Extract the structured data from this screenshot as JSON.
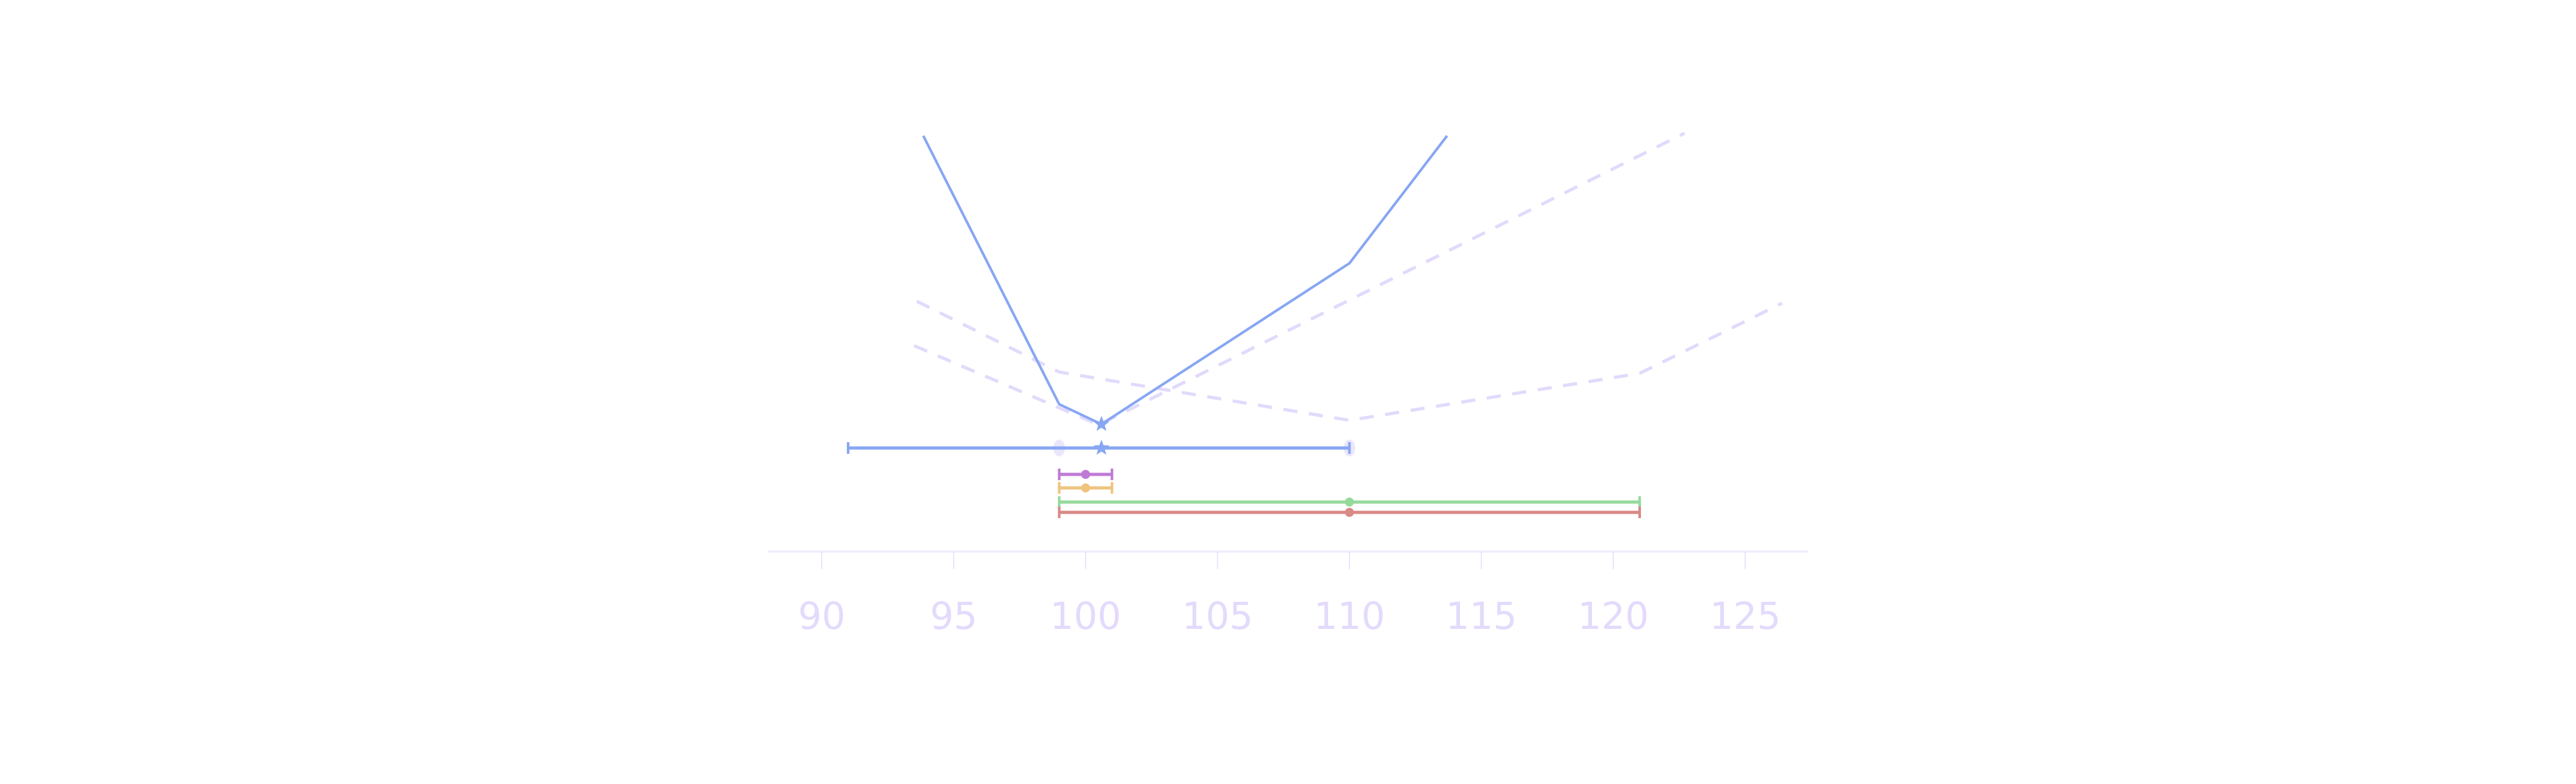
{
  "chart_data": {
    "type": "line",
    "title": "",
    "xlabel": "",
    "ylabel": "",
    "xlim": [
      88.2,
      127.4
    ],
    "x_ticks": [
      90,
      95,
      100,
      105,
      110,
      115,
      120,
      125
    ],
    "x_tick_labels": [
      "90",
      "95",
      "100",
      "105",
      "110",
      "115",
      "120",
      "125"
    ],
    "grid": false,
    "legend": null,
    "y_units_note": "No y-axis shown; y values are relative heights above the top interval row",
    "lines": [
      {
        "name": "profile-solid",
        "style": "solid",
        "color": "#87a6f3",
        "points": [
          {
            "x": 93.85,
            "y": 485
          },
          {
            "x": 99.0,
            "y": 68
          },
          {
            "x": 100.6,
            "y": 37,
            "marker": "star"
          },
          {
            "x": 110.0,
            "y": 287
          },
          {
            "x": 113.7,
            "y": 485
          }
        ]
      },
      {
        "name": "profile-dashed-1",
        "style": "dashed",
        "color": "#e2dafc",
        "points": [
          {
            "x": 93.6,
            "y": 228
          },
          {
            "x": 99.0,
            "y": 118
          },
          {
            "x": 110.0,
            "y": 43
          },
          {
            "x": 121.0,
            "y": 116
          },
          {
            "x": 126.4,
            "y": 225
          }
        ]
      },
      {
        "name": "profile-dashed-2",
        "style": "dashed",
        "color": "#e2dafc",
        "points": [
          {
            "x": 93.5,
            "y": 159
          },
          {
            "x": 100.5,
            "y": 36
          },
          {
            "x": 122.7,
            "y": 489
          }
        ]
      }
    ],
    "intervals": [
      {
        "name": "interval-blue",
        "color": "#87a6f3",
        "low": 91.0,
        "high": 110.0,
        "estimate": 100.6,
        "marker": "star",
        "ghost_markers": [
          99.0,
          110.0
        ],
        "ghost_color": "#ece6fd"
      },
      {
        "name": "interval-purple",
        "color": "#bf7ad6",
        "low": 99.0,
        "high": 101.0,
        "estimate": 100.0,
        "marker": "circle"
      },
      {
        "name": "interval-orange",
        "color": "#eec47e",
        "low": 99.0,
        "high": 101.0,
        "estimate": 100.0,
        "marker": "circle"
      },
      {
        "name": "interval-green",
        "color": "#96da9b",
        "low": 99.0,
        "high": 121.0,
        "estimate": 110.0,
        "marker": "circle"
      },
      {
        "name": "interval-red",
        "color": "#d98986",
        "low": 99.0,
        "high": 121.0,
        "estimate": 110.0,
        "marker": "circle"
      }
    ]
  },
  "axis": {
    "line_color": "#efeafd",
    "tick_color": "#e4dcfc",
    "label_color": "#e3dafc"
  }
}
